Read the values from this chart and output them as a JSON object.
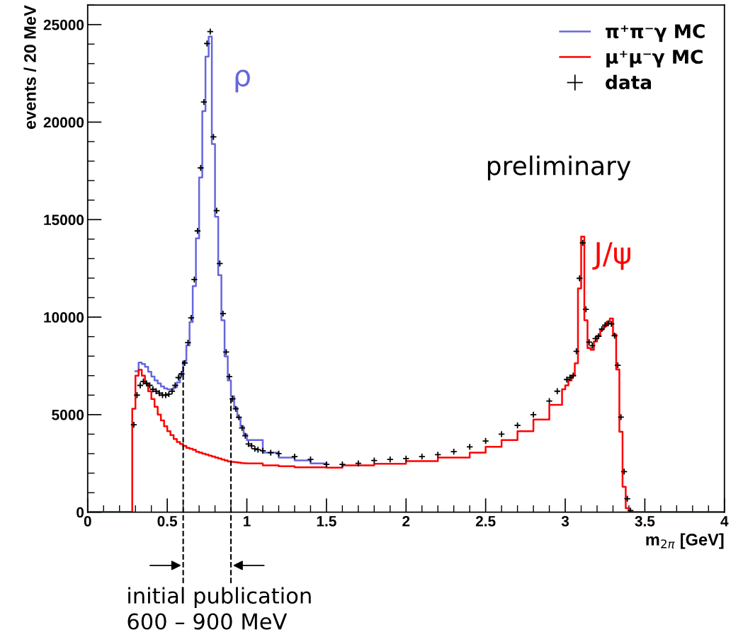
{
  "chart_data": {
    "type": "step",
    "xlabel": "m$_{2π}$ [GeV]",
    "ylabel": "events / 20 MeV",
    "xlim": [
      0,
      4
    ],
    "xticks": [
      0,
      0.5,
      1,
      1.5,
      2,
      2.5,
      3,
      3.5,
      4
    ],
    "ylim": [
      0,
      26000
    ],
    "yticks": [
      0,
      5000,
      10000,
      15000,
      20000,
      25000
    ],
    "legend": "top right",
    "grid": false,
    "x": [
      0,
      0.28,
      0.3,
      0.32,
      0.34,
      0.36,
      0.38,
      0.4,
      0.42,
      0.44,
      0.46,
      0.48,
      0.5,
      0.52,
      0.54,
      0.56,
      0.58,
      0.6,
      0.62,
      0.64,
      0.66,
      0.68,
      0.7,
      0.72,
      0.74,
      0.76,
      0.78,
      0.8,
      0.82,
      0.84,
      0.86,
      0.88,
      0.9,
      0.92,
      0.94,
      0.96,
      0.98,
      1.0,
      1.1,
      1.2,
      1.3,
      1.4,
      1.5,
      1.6,
      1.8,
      2.0,
      2.2,
      2.4,
      2.5,
      2.6,
      2.7,
      2.8,
      2.9,
      2.98,
      3.0,
      3.02,
      3.04,
      3.06,
      3.08,
      3.1,
      3.12,
      3.14,
      3.16,
      3.18,
      3.2,
      3.22,
      3.24,
      3.26,
      3.28,
      3.3,
      3.32,
      3.34,
      3.36,
      3.38,
      3.4,
      4.0
    ],
    "series": [
      {
        "name": "π⁺π⁻γ MC",
        "color": "#6666dd",
        "values": [
          null,
          null,
          7230,
          7670,
          7600,
          7450,
          7200,
          6950,
          6750,
          6600,
          6450,
          6350,
          6300,
          6300,
          6400,
          6650,
          7100,
          7740,
          8550,
          9750,
          11590,
          14040,
          17160,
          20560,
          23360,
          24380,
          18880,
          15150,
          12150,
          9840,
          7990,
          6750,
          5950,
          5370,
          4860,
          4400,
          4000,
          3700,
          3050,
          2800,
          2650,
          2500,
          2350,
          null,
          null,
          null,
          null,
          null,
          null,
          null,
          null,
          null,
          null,
          null,
          null,
          null,
          null,
          null,
          null,
          null,
          null,
          null,
          null,
          null,
          null,
          null,
          null,
          null,
          null,
          null,
          null,
          null,
          null,
          null,
          null,
          null
        ]
      },
      {
        "name": "μ⁺μ⁻γ MC",
        "color": "#ff0000",
        "values": [
          0,
          5300,
          7000,
          7300,
          7000,
          6600,
          6200,
          5800,
          5400,
          5000,
          4700,
          4400,
          4150,
          3950,
          3750,
          3600,
          3500,
          3400,
          3300,
          3250,
          3200,
          3100,
          3050,
          3000,
          2950,
          2900,
          2850,
          2800,
          2750,
          2700,
          2650,
          2600,
          2580,
          2560,
          2540,
          2520,
          2510,
          2500,
          2400,
          2350,
          2300,
          2300,
          2280,
          2400,
          2480,
          2620,
          2800,
          3050,
          3350,
          3700,
          4150,
          4750,
          5500,
          6300,
          6500,
          6750,
          7000,
          7630,
          11470,
          14130,
          9840,
          8410,
          8320,
          8750,
          9050,
          9350,
          9530,
          9770,
          9930,
          9110,
          7320,
          4120,
          1300,
          200,
          0,
          0
        ]
      },
      {
        "name": "data",
        "color": "#000000",
        "type": "scatter",
        "marker": "cross",
        "x": [
          0.29,
          0.31,
          0.33,
          0.35,
          0.37,
          0.39,
          0.41,
          0.43,
          0.45,
          0.47,
          0.49,
          0.51,
          0.53,
          0.55,
          0.57,
          0.59,
          0.61,
          0.63,
          0.65,
          0.67,
          0.69,
          0.71,
          0.73,
          0.75,
          0.77,
          0.79,
          0.81,
          0.83,
          0.85,
          0.87,
          0.89,
          0.91,
          0.93,
          0.95,
          0.97,
          0.99,
          1.01,
          1.03,
          1.05,
          1.07,
          1.1,
          1.15,
          1.2,
          1.3,
          1.4,
          1.5,
          1.6,
          1.7,
          1.8,
          1.9,
          2.0,
          2.1,
          2.2,
          2.3,
          2.4,
          2.5,
          2.6,
          2.7,
          2.8,
          2.9,
          2.95,
          3.01,
          3.03,
          3.05,
          3.07,
          3.09,
          3.11,
          3.13,
          3.15,
          3.17,
          3.19,
          3.21,
          3.23,
          3.25,
          3.27,
          3.29,
          3.31,
          3.33,
          3.35,
          3.37,
          3.39,
          3.41
        ],
        "values": [
          4480,
          6000,
          6500,
          6700,
          6600,
          6500,
          6300,
          6200,
          6100,
          6000,
          6000,
          6050,
          6200,
          6500,
          6900,
          7090,
          7650,
          8690,
          9960,
          11930,
          14420,
          17650,
          21030,
          24030,
          24640,
          19240,
          15460,
          12750,
          10180,
          8210,
          6950,
          5810,
          5300,
          4860,
          4320,
          3920,
          3490,
          3400,
          3250,
          3200,
          3150,
          3050,
          3000,
          2850,
          2700,
          2450,
          2450,
          2500,
          2650,
          2700,
          2750,
          2850,
          2950,
          3100,
          3350,
          3650,
          4000,
          4450,
          5000,
          5700,
          6200,
          6800,
          6900,
          7000,
          8250,
          11990,
          13810,
          10400,
          8720,
          8540,
          8900,
          9020,
          9390,
          9590,
          9680,
          9650,
          9050,
          7530,
          4870,
          2080,
          690,
          80
        ]
      }
    ],
    "ref_lines": [
      {
        "axis": "x",
        "value": 0.6,
        "color": "#000000",
        "line_style": "dashed"
      },
      {
        "axis": "x",
        "value": 0.9,
        "color": "#000000",
        "line_style": "dashed"
      }
    ],
    "annotations": [
      "ρ",
      "J/ψ",
      "preliminary",
      "initial publication\n600 – 900 MeV"
    ]
  }
}
